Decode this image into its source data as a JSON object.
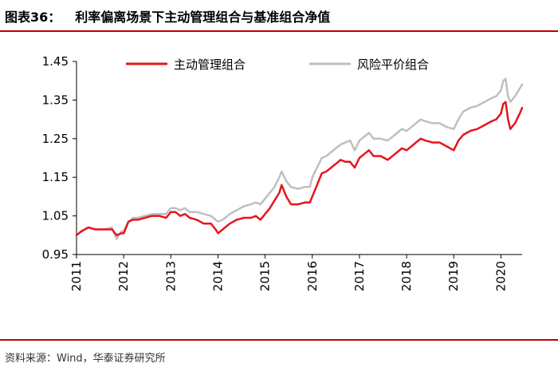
{
  "header": {
    "figure_no": "图表36：",
    "title": "利率偏离场景下主动管理组合与基准组合净值"
  },
  "source": "资料来源：Wind，华泰证券研究所",
  "colors": {
    "rule": "#c00000",
    "active": "#e8141c",
    "benchmark": "#bfbfbf",
    "axis": "#000000"
  },
  "chart_data": {
    "type": "line",
    "title": "利率偏离场景下主动管理组合与基准组合净值",
    "xlabel": "",
    "ylabel": "",
    "ylim": [
      0.95,
      1.45
    ],
    "yticks": [
      "0.95",
      "1.05",
      "1.15",
      "1.25",
      "1.35",
      "1.45"
    ],
    "xlim": [
      2011.0,
      2020.45
    ],
    "xticks": [
      "2011",
      "2012",
      "2013",
      "2014",
      "2015",
      "2016",
      "2017",
      "2018",
      "2019",
      "2020"
    ],
    "grid": false,
    "legend": "top",
    "series": [
      {
        "name": "主动管理组合",
        "color": "#e8141c",
        "x": [
          2011.0,
          2011.1,
          2011.25,
          2011.4,
          2011.6,
          2011.75,
          2011.85,
          2011.95,
          2012.0,
          2012.1,
          2012.2,
          2012.3,
          2012.45,
          2012.6,
          2012.75,
          2012.9,
          2013.0,
          2013.1,
          2013.2,
          2013.3,
          2013.4,
          2013.55,
          2013.7,
          2013.85,
          2013.95,
          2014.0,
          2014.1,
          2014.25,
          2014.4,
          2014.55,
          2014.7,
          2014.8,
          2014.9,
          2015.0,
          2015.1,
          2015.2,
          2015.3,
          2015.35,
          2015.45,
          2015.55,
          2015.7,
          2015.85,
          2015.95,
          2016.0,
          2016.1,
          2016.2,
          2016.3,
          2016.4,
          2016.5,
          2016.6,
          2016.7,
          2016.8,
          2016.9,
          2017.0,
          2017.1,
          2017.2,
          2017.3,
          2017.45,
          2017.6,
          2017.75,
          2017.9,
          2018.0,
          2018.1,
          2018.2,
          2018.3,
          2018.4,
          2018.55,
          2018.7,
          2018.85,
          2019.0,
          2019.1,
          2019.2,
          2019.35,
          2019.5,
          2019.65,
          2019.8,
          2019.9,
          2020.0,
          2020.05,
          2020.1,
          2020.15,
          2020.2,
          2020.3,
          2020.4,
          2020.45
        ],
        "values": [
          1.0,
          1.01,
          1.02,
          1.015,
          1.015,
          1.015,
          1.0,
          1.005,
          1.005,
          1.035,
          1.04,
          1.04,
          1.045,
          1.05,
          1.05,
          1.045,
          1.06,
          1.06,
          1.05,
          1.055,
          1.045,
          1.04,
          1.03,
          1.03,
          1.015,
          1.005,
          1.015,
          1.03,
          1.04,
          1.045,
          1.045,
          1.05,
          1.04,
          1.055,
          1.07,
          1.09,
          1.11,
          1.13,
          1.1,
          1.08,
          1.08,
          1.085,
          1.085,
          1.1,
          1.13,
          1.16,
          1.165,
          1.175,
          1.185,
          1.195,
          1.19,
          1.19,
          1.175,
          1.2,
          1.21,
          1.22,
          1.205,
          1.205,
          1.195,
          1.21,
          1.225,
          1.22,
          1.23,
          1.24,
          1.25,
          1.245,
          1.24,
          1.24,
          1.23,
          1.22,
          1.245,
          1.26,
          1.27,
          1.275,
          1.285,
          1.295,
          1.3,
          1.315,
          1.34,
          1.345,
          1.3,
          1.275,
          1.29,
          1.315,
          1.33
        ]
      },
      {
        "name": "风险平价组合",
        "color": "#bfbfbf",
        "x": [
          2011.0,
          2011.1,
          2011.25,
          2011.4,
          2011.6,
          2011.75,
          2011.85,
          2011.95,
          2012.0,
          2012.1,
          2012.2,
          2012.3,
          2012.45,
          2012.6,
          2012.75,
          2012.9,
          2013.0,
          2013.1,
          2013.2,
          2013.3,
          2013.4,
          2013.55,
          2013.7,
          2013.85,
          2013.95,
          2014.0,
          2014.1,
          2014.25,
          2014.4,
          2014.55,
          2014.7,
          2014.8,
          2014.9,
          2015.0,
          2015.1,
          2015.2,
          2015.3,
          2015.35,
          2015.45,
          2015.55,
          2015.7,
          2015.85,
          2015.95,
          2016.0,
          2016.1,
          2016.2,
          2016.3,
          2016.4,
          2016.5,
          2016.6,
          2016.7,
          2016.8,
          2016.9,
          2017.0,
          2017.1,
          2017.2,
          2017.3,
          2017.45,
          2017.6,
          2017.75,
          2017.9,
          2018.0,
          2018.1,
          2018.2,
          2018.3,
          2018.4,
          2018.55,
          2018.7,
          2018.85,
          2019.0,
          2019.1,
          2019.2,
          2019.35,
          2019.5,
          2019.65,
          2019.8,
          2019.9,
          2020.0,
          2020.05,
          2020.1,
          2020.15,
          2020.2,
          2020.3,
          2020.4,
          2020.45
        ],
        "values": [
          1.0,
          1.01,
          1.02,
          1.015,
          1.015,
          1.02,
          0.99,
          1.01,
          1.01,
          1.035,
          1.045,
          1.045,
          1.05,
          1.055,
          1.055,
          1.055,
          1.07,
          1.07,
          1.065,
          1.07,
          1.06,
          1.06,
          1.055,
          1.05,
          1.04,
          1.035,
          1.04,
          1.055,
          1.065,
          1.075,
          1.08,
          1.085,
          1.08,
          1.095,
          1.11,
          1.125,
          1.15,
          1.165,
          1.14,
          1.125,
          1.12,
          1.125,
          1.125,
          1.15,
          1.175,
          1.2,
          1.205,
          1.215,
          1.225,
          1.235,
          1.24,
          1.245,
          1.22,
          1.245,
          1.255,
          1.265,
          1.25,
          1.25,
          1.245,
          1.26,
          1.275,
          1.27,
          1.28,
          1.29,
          1.3,
          1.295,
          1.29,
          1.29,
          1.28,
          1.275,
          1.3,
          1.32,
          1.33,
          1.335,
          1.345,
          1.355,
          1.36,
          1.375,
          1.4,
          1.405,
          1.36,
          1.345,
          1.36,
          1.38,
          1.39
        ]
      }
    ]
  }
}
